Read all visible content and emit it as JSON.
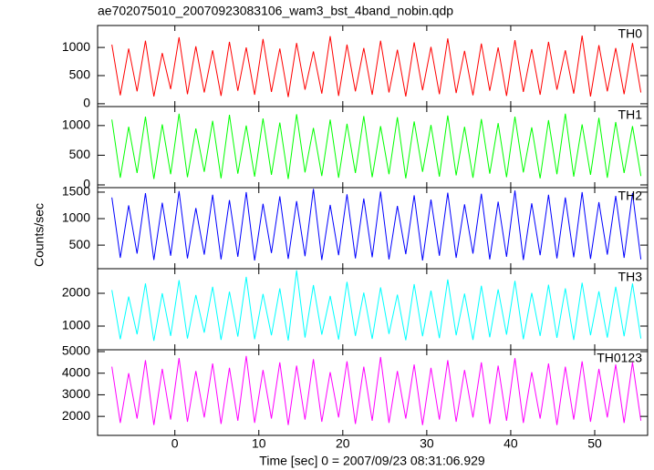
{
  "title": "ae702075010_20070923083106_wam3_bst_4band_nobin.qdp",
  "y_label": "Counts/sec",
  "x_label": "Time [sec] 0 = 2007/09/23 08:31:06.929",
  "chart_data": [
    {
      "type": "line",
      "xlim": [
        -9.2,
        56.3
      ],
      "xticks": [
        0,
        10,
        20,
        30,
        40,
        50
      ],
      "ylim": [
        -50,
        1390
      ],
      "yticks": [
        0,
        500,
        1000
      ],
      "x": [
        -7.5,
        -6.5,
        -5.5,
        -4.5,
        -3.5,
        -2.5,
        -1.5,
        -0.5,
        0.5,
        1.5,
        2.5,
        3.5,
        4.5,
        5.5,
        6.5,
        7.5,
        8.5,
        9.5,
        10.5,
        11.5,
        12.5,
        13.5,
        14.5,
        15.5,
        16.5,
        17.5,
        18.5,
        19.5,
        20.5,
        21.5,
        22.5,
        23.5,
        24.5,
        25.5,
        26.5,
        27.5,
        28.5,
        29.5,
        30.5,
        31.5,
        32.5,
        33.5,
        34.5,
        35.5,
        36.5,
        37.5,
        38.5,
        39.5,
        40.5,
        41.5,
        42.5,
        43.5,
        44.5,
        45.5,
        46.5,
        47.5,
        48.5,
        49.5,
        50.5,
        51.5,
        52.5,
        53.5,
        54.5,
        55.5
      ],
      "series": [
        {
          "name": "TH0",
          "color": "#ff0000",
          "values": [
            1050,
            150,
            980,
            220,
            1120,
            130,
            900,
            260,
            1180,
            170,
            1020,
            200,
            950,
            140,
            1100,
            230,
            1000,
            160,
            1150,
            210,
            980,
            120,
            1080,
            250,
            930,
            180,
            1200,
            140,
            1050,
            220,
            990,
            160,
            1120,
            200,
            960,
            130,
            1090,
            240,
            1010,
            170,
            1160,
            190,
            940,
            150,
            1070,
            230,
            1000,
            140,
            1130,
            210,
            970,
            160,
            1100,
            250,
            950,
            180,
            1210,
            130,
            1040,
            220,
            990,
            170,
            1080,
            200
          ]
        }
      ]
    },
    {
      "type": "line",
      "xlim": [
        -9.2,
        56.3
      ],
      "xticks": [
        0,
        10,
        20,
        30,
        40,
        50
      ],
      "ylim": [
        -46,
        1320
      ],
      "yticks": [
        0,
        500,
        1000
      ],
      "x": [
        -7.5,
        -6.5,
        -5.5,
        -4.5,
        -3.5,
        -2.5,
        -1.5,
        -0.5,
        0.5,
        1.5,
        2.5,
        3.5,
        4.5,
        5.5,
        6.5,
        7.5,
        8.5,
        9.5,
        10.5,
        11.5,
        12.5,
        13.5,
        14.5,
        15.5,
        16.5,
        17.5,
        18.5,
        19.5,
        20.5,
        21.5,
        22.5,
        23.5,
        24.5,
        25.5,
        26.5,
        27.5,
        28.5,
        29.5,
        30.5,
        31.5,
        32.5,
        33.5,
        34.5,
        35.5,
        36.5,
        37.5,
        38.5,
        39.5,
        40.5,
        41.5,
        42.5,
        43.5,
        44.5,
        45.5,
        46.5,
        47.5,
        48.5,
        49.5,
        50.5,
        51.5,
        52.5,
        53.5,
        54.5,
        55.5
      ],
      "series": [
        {
          "name": "TH1",
          "color": "#00ff00",
          "values": [
            1100,
            120,
            980,
            200,
            1150,
            100,
            1020,
            180,
            1200,
            130,
            950,
            220,
            1080,
            110,
            1180,
            190,
            1000,
            140,
            1120,
            170,
            1050,
            100,
            1190,
            210,
            960,
            150,
            1100,
            120,
            1030,
            200,
            1160,
            130,
            990,
            180,
            1140,
            110,
            1070,
            220,
            1010,
            140,
            1170,
            160,
            980,
            120,
            1110,
            190,
            1040,
            130,
            1150,
            210,
            970,
            110,
            1090,
            180,
            1200,
            140,
            1020,
            170,
            1130,
            120,
            1060,
            200,
            990,
            150
          ]
        }
      ]
    },
    {
      "type": "line",
      "xlim": [
        -9.2,
        56.3
      ],
      "xticks": [
        0,
        10,
        20,
        30,
        40,
        50
      ],
      "ylim": [
        55,
        1585
      ],
      "yticks": [
        500,
        1000,
        1500
      ],
      "x": [
        -7.5,
        -6.5,
        -5.5,
        -4.5,
        -3.5,
        -2.5,
        -1.5,
        -0.5,
        0.5,
        1.5,
        2.5,
        3.5,
        4.5,
        5.5,
        6.5,
        7.5,
        8.5,
        9.5,
        10.5,
        11.5,
        12.5,
        13.5,
        14.5,
        15.5,
        16.5,
        17.5,
        18.5,
        19.5,
        20.5,
        21.5,
        22.5,
        23.5,
        24.5,
        25.5,
        26.5,
        27.5,
        28.5,
        29.5,
        30.5,
        31.5,
        32.5,
        33.5,
        34.5,
        35.5,
        36.5,
        37.5,
        38.5,
        39.5,
        40.5,
        41.5,
        42.5,
        43.5,
        44.5,
        45.5,
        46.5,
        47.5,
        48.5,
        49.5,
        50.5,
        51.5,
        52.5,
        53.5,
        54.5,
        55.5
      ],
      "series": [
        {
          "name": "TH2",
          "color": "#0000ff",
          "values": [
            1400,
            260,
            1250,
            340,
            1480,
            220,
            1300,
            300,
            1520,
            250,
            1200,
            320,
            1450,
            230,
            1350,
            280,
            1500,
            210,
            1280,
            350,
            1420,
            240,
            1330,
            290,
            1560,
            220,
            1260,
            310,
            1460,
            250,
            1380,
            270,
            1510,
            230,
            1240,
            330,
            1440,
            210,
            1360,
            300,
            1490,
            260,
            1270,
            340,
            1470,
            230,
            1320,
            280,
            1530,
            220,
            1290,
            310,
            1450,
            250,
            1400,
            270,
            1500,
            240,
            1310,
            320,
            1430,
            260,
            1480,
            230
          ]
        }
      ]
    },
    {
      "type": "line",
      "xlim": [
        -9.2,
        56.3
      ],
      "xticks": [
        0,
        10,
        20,
        30,
        40,
        50
      ],
      "ylim": [
        278,
        2750
      ],
      "yticks": [
        1000,
        2000
      ],
      "x": [
        -7.5,
        -6.5,
        -5.5,
        -4.5,
        -3.5,
        -2.5,
        -1.5,
        -0.5,
        0.5,
        1.5,
        2.5,
        3.5,
        4.5,
        5.5,
        6.5,
        7.5,
        8.5,
        9.5,
        10.5,
        11.5,
        12.5,
        13.5,
        14.5,
        15.5,
        16.5,
        17.5,
        18.5,
        19.5,
        20.5,
        21.5,
        22.5,
        23.5,
        24.5,
        25.5,
        26.5,
        27.5,
        28.5,
        29.5,
        30.5,
        31.5,
        32.5,
        33.5,
        34.5,
        35.5,
        36.5,
        37.5,
        38.5,
        39.5,
        40.5,
        41.5,
        42.5,
        43.5,
        44.5,
        45.5,
        46.5,
        47.5,
        48.5,
        49.5,
        50.5,
        51.5,
        52.5,
        53.5,
        54.5,
        55.5
      ],
      "series": [
        {
          "name": "TH3",
          "color": "#00ffff",
          "values": [
            2100,
            600,
            1900,
            750,
            2300,
            550,
            2000,
            700,
            2400,
            620,
            1950,
            800,
            2200,
            580,
            2050,
            680,
            2500,
            600,
            1980,
            720,
            2150,
            560,
            2700,
            650,
            2250,
            740,
            1920,
            590,
            2350,
            700,
            2020,
            610,
            2180,
            760,
            1960,
            570,
            2280,
            690,
            2080,
            630,
            2420,
            720,
            1990,
            580,
            2230,
            660,
            2120,
            740,
            2380,
            600,
            2010,
            700,
            2260,
            640,
            2150,
            580,
            2320,
            720,
            2060,
            650,
            2200,
            690,
            2300,
            620
          ]
        }
      ]
    },
    {
      "type": "line",
      "xlim": [
        -9.2,
        56.3
      ],
      "xticks": [
        0,
        10,
        20,
        30,
        40,
        50
      ],
      "ylim": [
        1120,
        5085
      ],
      "yticks": [
        2000,
        3000,
        4000,
        5000
      ],
      "x": [
        -7.5,
        -6.5,
        -5.5,
        -4.5,
        -3.5,
        -2.5,
        -1.5,
        -0.5,
        0.5,
        1.5,
        2.5,
        3.5,
        4.5,
        5.5,
        6.5,
        7.5,
        8.5,
        9.5,
        10.5,
        11.5,
        12.5,
        13.5,
        14.5,
        15.5,
        16.5,
        17.5,
        18.5,
        19.5,
        20.5,
        21.5,
        22.5,
        23.5,
        24.5,
        25.5,
        26.5,
        27.5,
        28.5,
        29.5,
        30.5,
        31.5,
        32.5,
        33.5,
        34.5,
        35.5,
        36.5,
        37.5,
        38.5,
        39.5,
        40.5,
        41.5,
        42.5,
        43.5,
        44.5,
        45.5,
        46.5,
        47.5,
        48.5,
        49.5,
        50.5,
        51.5,
        52.5,
        53.5,
        54.5,
        55.5
      ],
      "series": [
        {
          "name": "TH0123",
          "color": "#ff00ff",
          "values": [
            4300,
            1700,
            4000,
            1900,
            4600,
            1600,
            4200,
            1850,
            4700,
            1750,
            4100,
            1950,
            4450,
            1650,
            4250,
            1800,
            4800,
            1700,
            4150,
            1900,
            4500,
            1600,
            4350,
            1850,
            4650,
            1750,
            4050,
            1950,
            4550,
            1650,
            4300,
            1800,
            4750,
            1700,
            4100,
            1900,
            4400,
            1600,
            4250,
            1850,
            4600,
            1750,
            4150,
            1950,
            4500,
            1650,
            4350,
            1800,
            4700,
            1700,
            4050,
            1900,
            4450,
            1600,
            4300,
            1850,
            4550,
            1750,
            4200,
            1950,
            4400,
            1700,
            4500,
            1800
          ]
        }
      ]
    }
  ]
}
